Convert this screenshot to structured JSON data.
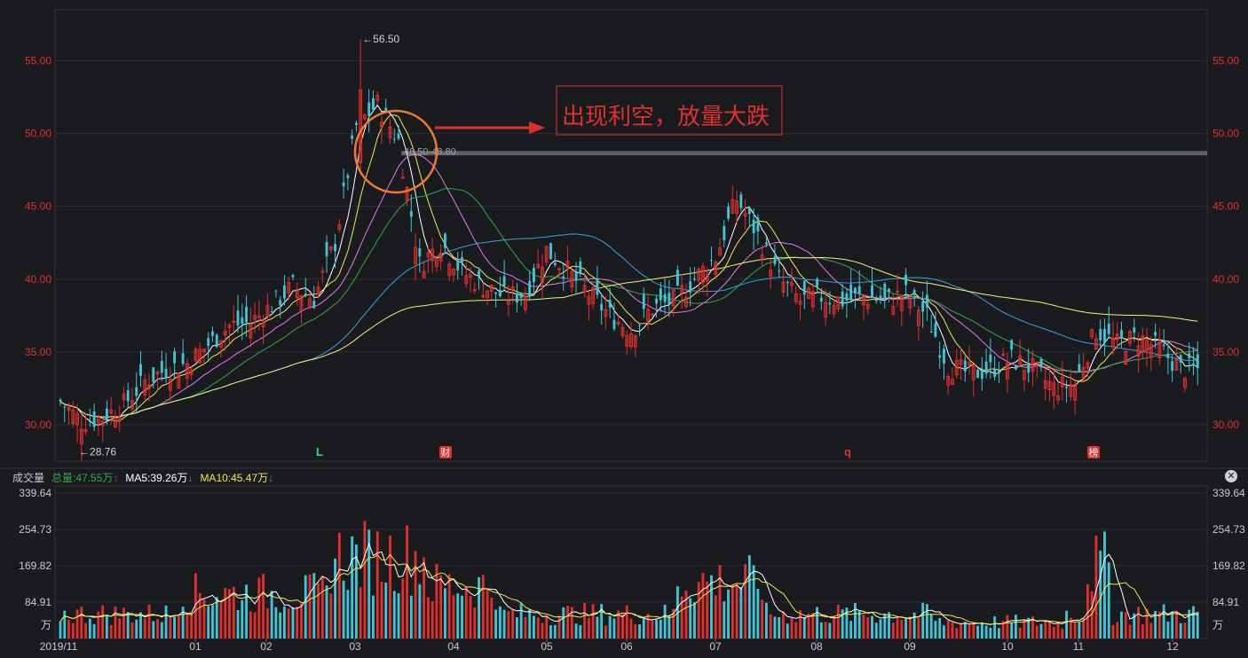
{
  "colors": {
    "background": "#1a1b1f",
    "grid": "#2c2e34",
    "axis_text_price": "#e0302c",
    "axis_text_volume": "#c8cad0",
    "up": "#e0302c",
    "down": "#3ec6d6",
    "ma5": "#ffffff",
    "ma10": "#f2e84a",
    "ma20": "#e879e8",
    "ma30": "#2eaa4e",
    "ma60": "#33a3e0",
    "ma120": "#f2f27a",
    "annotation": "#e0302c",
    "circle": "#f07b2e",
    "highlight_band": "#6a6d73"
  },
  "chart_data": [
    {
      "type": "candlestick",
      "title": "",
      "xlabel": "",
      "ylabel": "",
      "ylim": [
        27.5,
        58.5
      ],
      "y_ticks": [
        "55.00",
        "50.00",
        "45.00",
        "40.00",
        "35.00",
        "30.00"
      ],
      "y_tick_values": [
        55,
        50,
        45,
        40,
        35,
        30
      ],
      "grid": true,
      "series_approx_close": [
        {
          "date": "2019-11-18",
          "close": 31.6
        },
        {
          "date": "2019-11-25",
          "close": 30.2
        },
        {
          "date": "2019-12-02",
          "close": 30.5
        },
        {
          "date": "2019-12-09",
          "close": 31.4
        },
        {
          "date": "2019-12-16",
          "close": 33.0
        },
        {
          "date": "2019-12-23",
          "close": 33.8
        },
        {
          "date": "2019-12-30",
          "close": 34.2
        },
        {
          "date": "2020-01-06",
          "close": 35.5
        },
        {
          "date": "2020-01-13",
          "close": 36.8
        },
        {
          "date": "2020-01-20",
          "close": 37.0
        },
        {
          "date": "2020-02-03",
          "close": 38.2
        },
        {
          "date": "2020-02-10",
          "close": 39.5
        },
        {
          "date": "2020-02-17",
          "close": 38.6
        },
        {
          "date": "2020-02-24",
          "close": 42.5
        },
        {
          "date": "2020-03-02",
          "close": 50.5
        },
        {
          "date": "2020-03-09",
          "close": 52.0
        },
        {
          "date": "2020-03-16",
          "close": 49.5
        },
        {
          "date": "2020-03-23",
          "close": 41.0
        },
        {
          "date": "2020-03-30",
          "close": 42.5
        },
        {
          "date": "2020-04-06",
          "close": 40.5
        },
        {
          "date": "2020-04-13",
          "close": 39.5
        },
        {
          "date": "2020-04-20",
          "close": 38.8
        },
        {
          "date": "2020-04-27",
          "close": 39.0
        },
        {
          "date": "2020-05-06",
          "close": 42.0
        },
        {
          "date": "2020-05-11",
          "close": 40.5
        },
        {
          "date": "2020-05-18",
          "close": 39.0
        },
        {
          "date": "2020-05-25",
          "close": 37.5
        },
        {
          "date": "2020-06-01",
          "close": 36.5
        },
        {
          "date": "2020-06-08",
          "close": 38.0
        },
        {
          "date": "2020-06-15",
          "close": 38.5
        },
        {
          "date": "2020-06-22",
          "close": 40.0
        },
        {
          "date": "2020-06-29",
          "close": 41.5
        },
        {
          "date": "2020-07-06",
          "close": 45.5
        },
        {
          "date": "2020-07-13",
          "close": 43.0
        },
        {
          "date": "2020-07-20",
          "close": 40.0
        },
        {
          "date": "2020-07-27",
          "close": 38.5
        },
        {
          "date": "2020-08-03",
          "close": 38.8
        },
        {
          "date": "2020-08-10",
          "close": 38.5
        },
        {
          "date": "2020-08-17",
          "close": 38.8
        },
        {
          "date": "2020-08-24",
          "close": 38.5
        },
        {
          "date": "2020-08-31",
          "close": 39.0
        },
        {
          "date": "2020-09-07",
          "close": 37.5
        },
        {
          "date": "2020-09-14",
          "close": 34.0
        },
        {
          "date": "2020-09-21",
          "close": 33.5
        },
        {
          "date": "2020-09-28",
          "close": 33.8
        },
        {
          "date": "2020-10-12",
          "close": 34.5
        },
        {
          "date": "2020-10-19",
          "close": 33.8
        },
        {
          "date": "2020-10-26",
          "close": 32.5
        },
        {
          "date": "2020-11-02",
          "close": 32.8
        },
        {
          "date": "2020-11-09",
          "close": 36.5
        },
        {
          "date": "2020-11-16",
          "close": 35.5
        },
        {
          "date": "2020-11-23",
          "close": 36.0
        },
        {
          "date": "2020-11-30",
          "close": 35.2
        },
        {
          "date": "2020-12-07",
          "close": 33.8
        }
      ],
      "x_ticks": [
        "2019/11",
        "01",
        "02",
        "03",
        "04",
        "05",
        "06",
        "07",
        "08",
        "09",
        "10",
        "11",
        "12"
      ],
      "markers": [
        {
          "label": "←56.50",
          "value": 56.5
        },
        {
          "label": "←28.76",
          "value": 28.76
        },
        {
          "label": "48.50-48.80",
          "value": 48.65
        }
      ],
      "event_flags": [
        {
          "label": "L",
          "color": "#3ec6d6",
          "boxed": false
        },
        {
          "label": "财",
          "color": "#e0302c",
          "boxed": true
        },
        {
          "label": "q",
          "color": "#e0302c",
          "boxed": false
        },
        {
          "label": "榜",
          "color": "#e0302c",
          "boxed": true
        }
      ],
      "annotation": {
        "text": "出现利空，放量大跌"
      }
    },
    {
      "type": "bar",
      "title": "成交量",
      "ylim": [
        0,
        339.64
      ],
      "y_ticks": [
        "339.64",
        "254.73",
        "169.82",
        "84.91",
        "万"
      ],
      "y_tick_values": [
        339.64,
        254.73,
        169.82,
        84.91,
        0
      ],
      "legend": [
        {
          "label": "成交量",
          "color": "#c8cad0"
        },
        {
          "label": "总量:47.55万",
          "color": "#2eaa4e",
          "arrow": "↑",
          "arrow_color": "#e0302c"
        },
        {
          "label": "MA5:39.26万",
          "color": "#ffffff",
          "arrow": "↓",
          "arrow_color": "#2eaa4e"
        },
        {
          "label": "MA10:45.47万",
          "color": "#f2e84a",
          "arrow": "↓",
          "arrow_color": "#2eaa4e"
        }
      ],
      "series_approx": [
        {
          "date": "2019-11",
          "values_range": [
            40,
            70
          ]
        },
        {
          "date": "2020-01",
          "values_range": [
            60,
            180
          ]
        },
        {
          "date": "2020-02",
          "values_range": [
            80,
            180
          ]
        },
        {
          "date": "2020-03",
          "values_range": [
            150,
            320
          ]
        },
        {
          "date": "2020-04",
          "values_range": [
            70,
            170
          ]
        },
        {
          "date": "2020-05",
          "values_range": [
            50,
            160
          ]
        },
        {
          "date": "2020-06",
          "values_range": [
            40,
            100
          ]
        },
        {
          "date": "2020-07",
          "values_range": [
            80,
            210
          ]
        },
        {
          "date": "2020-08",
          "values_range": [
            40,
            120
          ]
        },
        {
          "date": "2020-09",
          "values_range": [
            30,
            90
          ]
        },
        {
          "date": "2020-10",
          "values_range": [
            20,
            60
          ]
        },
        {
          "date": "2020-11",
          "values_range": [
            40,
            220
          ]
        },
        {
          "date": "2020-12",
          "values_range": [
            30,
            70
          ]
        }
      ]
    }
  ]
}
